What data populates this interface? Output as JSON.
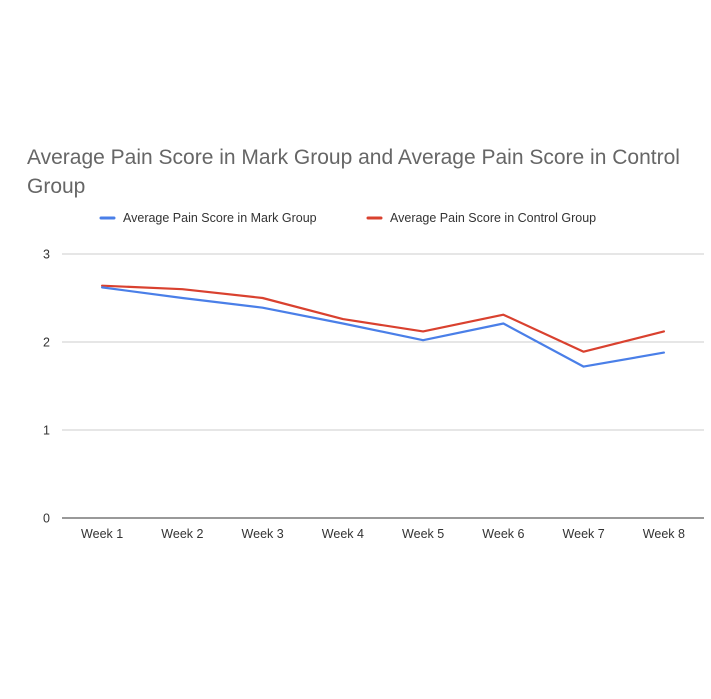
{
  "chart_data": {
    "type": "line",
    "title": "Average Pain Score in Mark Group and Average Pain Score in Control Group",
    "xlabel": "",
    "ylabel": "",
    "categories": [
      "Week 1",
      "Week 2",
      "Week 3",
      "Week 4",
      "Week 5",
      "Week 6",
      "Week 7",
      "Week 8"
    ],
    "ylim": [
      0,
      3
    ],
    "yticks": [
      "0",
      "1",
      "2",
      "3"
    ],
    "grid": true,
    "legend_position": "top",
    "series": [
      {
        "name": "Average Pain Score in Mark Group",
        "color": "#4a7fe8",
        "values": [
          2.62,
          2.5,
          2.39,
          2.21,
          2.02,
          2.21,
          1.72,
          1.88
        ]
      },
      {
        "name": "Average Pain Score in Control Group",
        "color": "#d9412f",
        "values": [
          2.64,
          2.6,
          2.5,
          2.26,
          2.12,
          2.31,
          1.89,
          2.12
        ]
      }
    ]
  }
}
